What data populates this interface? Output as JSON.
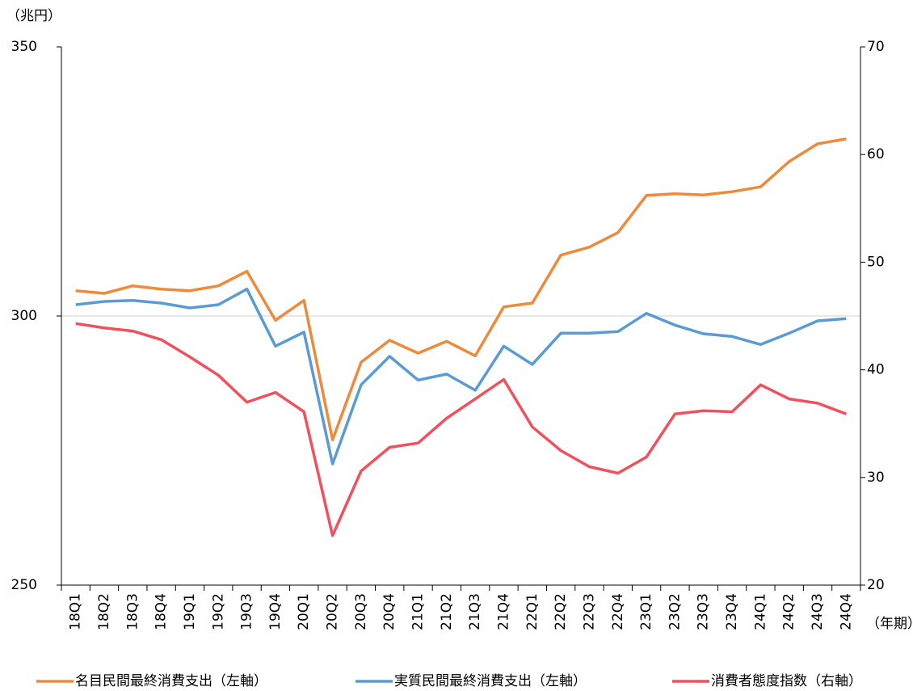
{
  "chart_data": {
    "type": "line",
    "y_unit_label": "（兆円）",
    "x_unit_label": "（年期）",
    "categories": [
      "18Q1",
      "18Q2",
      "18Q3",
      "18Q4",
      "19Q1",
      "19Q2",
      "19Q3",
      "19Q4",
      "20Q1",
      "20Q2",
      "20Q3",
      "20Q4",
      "21Q1",
      "21Q2",
      "21Q3",
      "21Q4",
      "22Q1",
      "22Q2",
      "22Q3",
      "22Q4",
      "23Q1",
      "23Q2",
      "23Q3",
      "23Q4",
      "24Q1",
      "24Q2",
      "24Q3",
      "24Q4"
    ],
    "series": [
      {
        "name": "名目民間最終消費支出（左軸）",
        "color": "#ee8a3c",
        "axis": "y",
        "values": [
          304.7,
          304.2,
          305.6,
          305.0,
          304.7,
          305.6,
          308.3,
          299.2,
          302.9,
          277.0,
          291.4,
          295.5,
          293.1,
          295.3,
          292.6,
          301.7,
          302.4,
          311.3,
          312.8,
          315.5,
          322.4,
          322.7,
          322.5,
          323.1,
          324.0,
          328.7,
          332.0,
          332.9
        ]
      },
      {
        "name": "実質民間最終消費支出（左軸）",
        "color": "#5b9bd5",
        "axis": "y",
        "values": [
          302.1,
          302.7,
          302.9,
          302.4,
          301.5,
          302.1,
          305.0,
          294.4,
          297.0,
          272.5,
          287.2,
          292.5,
          288.1,
          289.2,
          286.2,
          294.4,
          291.0,
          296.8,
          296.8,
          297.1,
          300.5,
          298.3,
          296.7,
          296.2,
          294.7,
          296.8,
          299.1,
          299.5
        ]
      },
      {
        "name": "消費者態度指数（右軸）",
        "color": "#f0515e",
        "axis": "y2",
        "values": [
          44.3,
          43.9,
          43.6,
          42.8,
          41.2,
          39.5,
          37.0,
          37.9,
          36.1,
          24.6,
          30.6,
          32.8,
          33.2,
          35.5,
          37.3,
          39.1,
          34.7,
          32.5,
          31.0,
          30.4,
          31.9,
          35.9,
          36.2,
          36.1,
          38.6,
          37.3,
          36.9,
          35.9
        ]
      }
    ],
    "ylim": [
      250,
      350
    ],
    "yticks": [
      250,
      300,
      350
    ],
    "y2lim": [
      20,
      70
    ],
    "y2ticks": [
      20,
      30,
      40,
      50,
      60,
      70
    ],
    "gridlines": [
      300
    ]
  }
}
